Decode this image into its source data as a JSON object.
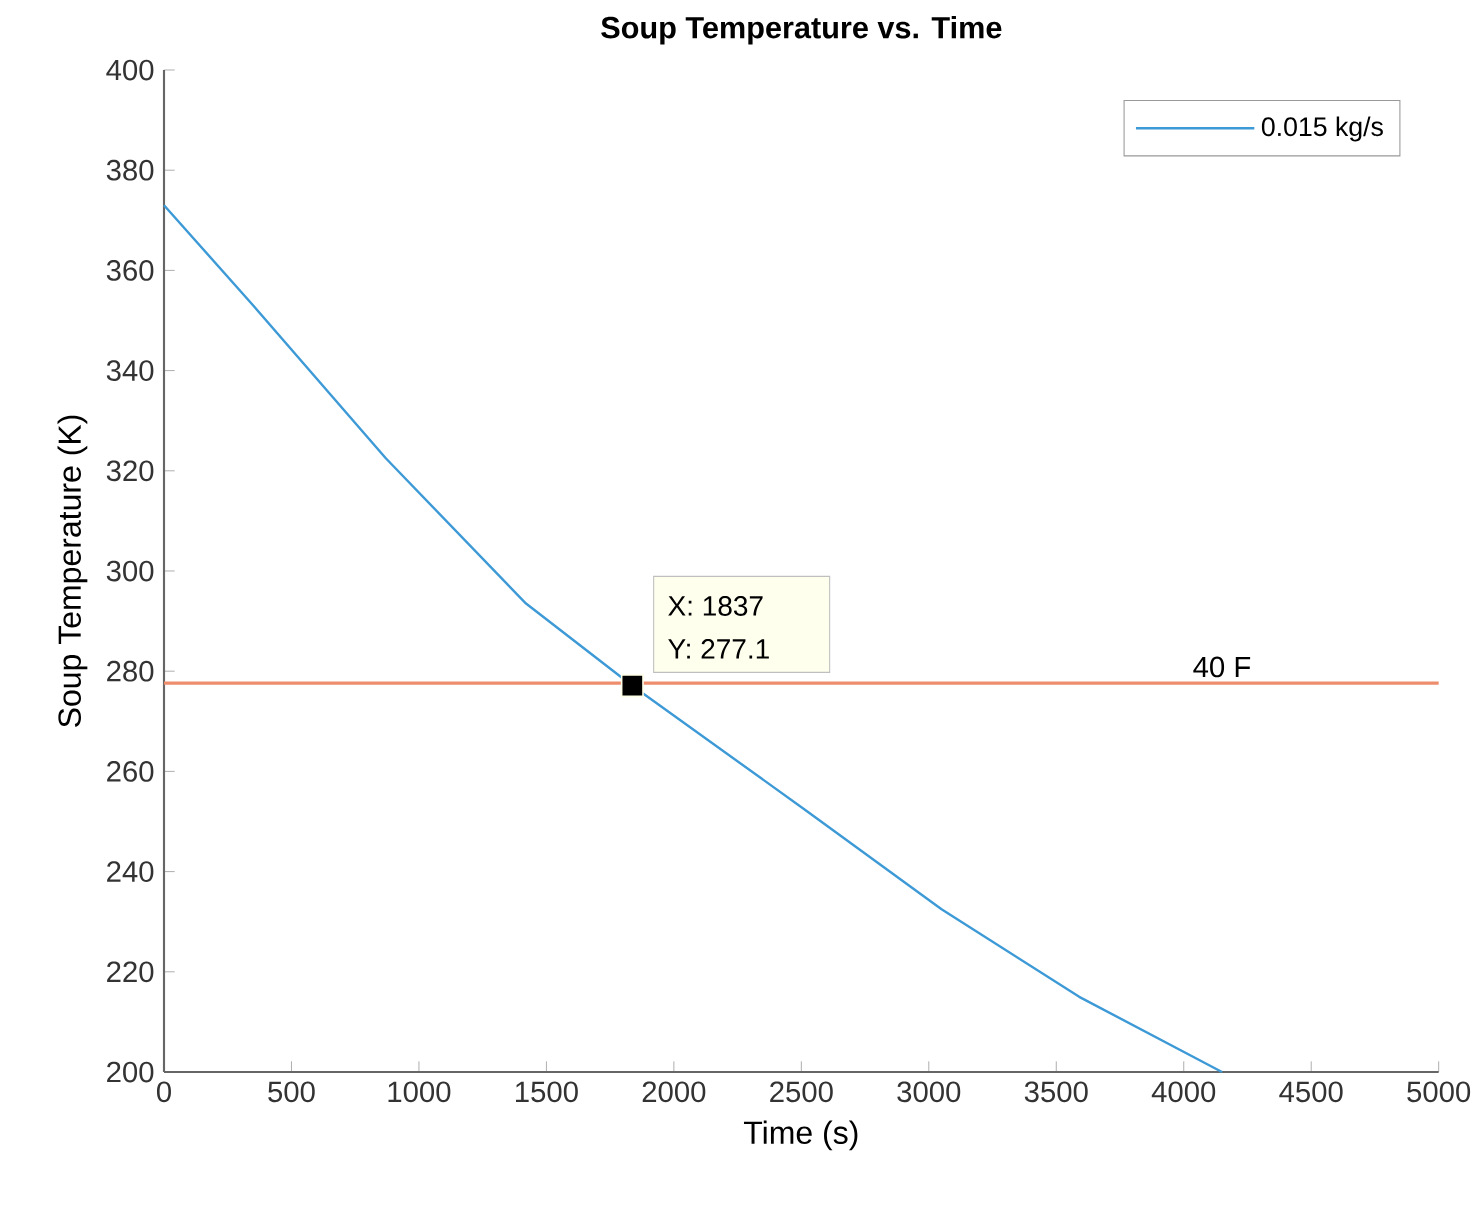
{
  "chart_data": {
    "type": "line",
    "title": "Soup Temperature vs. Time",
    "xlabel": "Time (s)",
    "ylabel": "Soup Temperature (K)",
    "series": [
      {
        "name": "0.015 kg/s",
        "color": "#3d9ad6",
        "x": [
          0,
          350,
          870,
          1420,
          1837,
          2510,
          3050,
          3590,
          4150
        ],
        "values": [
          373,
          353,
          322.5,
          293.5,
          277.1,
          252.5,
          232.5,
          215,
          200
        ]
      },
      {
        "type": "scatter",
        "marker": "square",
        "color": "#000000",
        "x": [
          1837
        ],
        "values": [
          277.1
        ]
      }
    ],
    "xlim": [
      0,
      5000
    ],
    "xticks": [
      0,
      500,
      1000,
      1500,
      2000,
      2500,
      3000,
      3500,
      4000,
      4500,
      5000
    ],
    "ylim": [
      200,
      400
    ],
    "yticks": [
      200,
      220,
      240,
      260,
      280,
      300,
      320,
      340,
      360,
      380,
      400
    ],
    "ref_lines": [
      {
        "axis": "y",
        "value": 277.6,
        "label": "40 F",
        "color": "#ee8d6e"
      }
    ],
    "annotations": [
      {
        "text": "X: 1837",
        "x": 1837,
        "y": 277.1
      },
      {
        "text": "Y: 277.1",
        "x": 1837,
        "y": 277.1
      }
    ],
    "legend": "top right",
    "grid": false
  }
}
